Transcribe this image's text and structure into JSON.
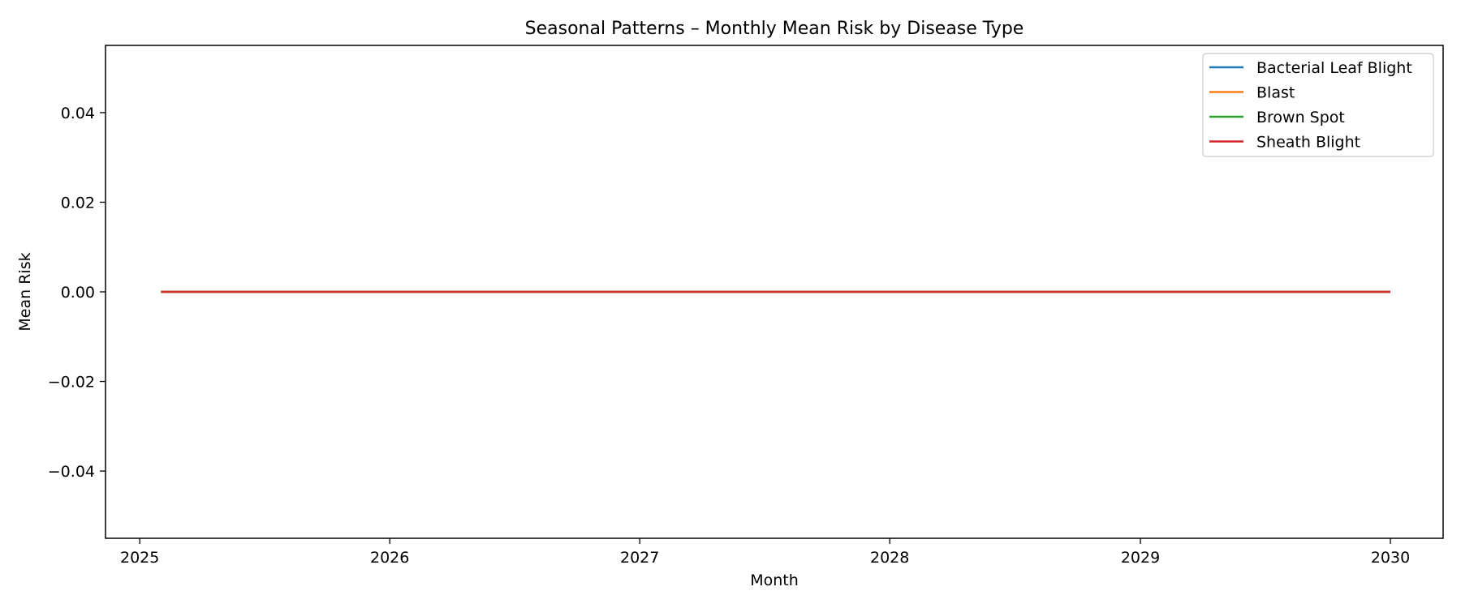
{
  "chart_data": {
    "type": "line",
    "title": "Seasonal Patterns – Monthly Mean Risk by Disease Type",
    "xlabel": "Month",
    "ylabel": "Mean Risk",
    "x_range": [
      "2024-11-12",
      "2030-03-19"
    ],
    "ylim": [
      -0.055,
      0.055
    ],
    "x_ticks": [
      {
        "date": "2025-01-01",
        "label": "2025"
      },
      {
        "date": "2026-01-01",
        "label": "2026"
      },
      {
        "date": "2027-01-01",
        "label": "2027"
      },
      {
        "date": "2028-01-01",
        "label": "2028"
      },
      {
        "date": "2029-01-01",
        "label": "2029"
      },
      {
        "date": "2030-01-01",
        "label": "2030"
      }
    ],
    "y_ticks": [
      {
        "value": 0.04,
        "label": "0.04"
      },
      {
        "value": 0.02,
        "label": "0.02"
      },
      {
        "value": 0.0,
        "label": "0.00"
      },
      {
        "value": -0.02,
        "label": "−0.02"
      },
      {
        "value": -0.04,
        "label": "−0.04"
      }
    ],
    "grid": false,
    "legend_position": "top-right",
    "series": [
      {
        "name": "Bacterial Leaf Blight",
        "color": "#1f77b4",
        "points": [
          [
            "2025-02-01",
            0
          ],
          [
            "2030-01-01",
            0
          ]
        ]
      },
      {
        "name": "Blast",
        "color": "#ff7f0e",
        "points": [
          [
            "2025-02-01",
            0
          ],
          [
            "2030-01-01",
            0
          ]
        ]
      },
      {
        "name": "Brown Spot",
        "color": "#2ca02c",
        "points": [
          [
            "2025-02-01",
            0
          ],
          [
            "2030-01-01",
            0
          ]
        ]
      },
      {
        "name": "Sheath Blight",
        "color": "#d62728",
        "points": [
          [
            "2025-02-01",
            0
          ],
          [
            "2030-01-01",
            0
          ]
        ]
      }
    ]
  }
}
